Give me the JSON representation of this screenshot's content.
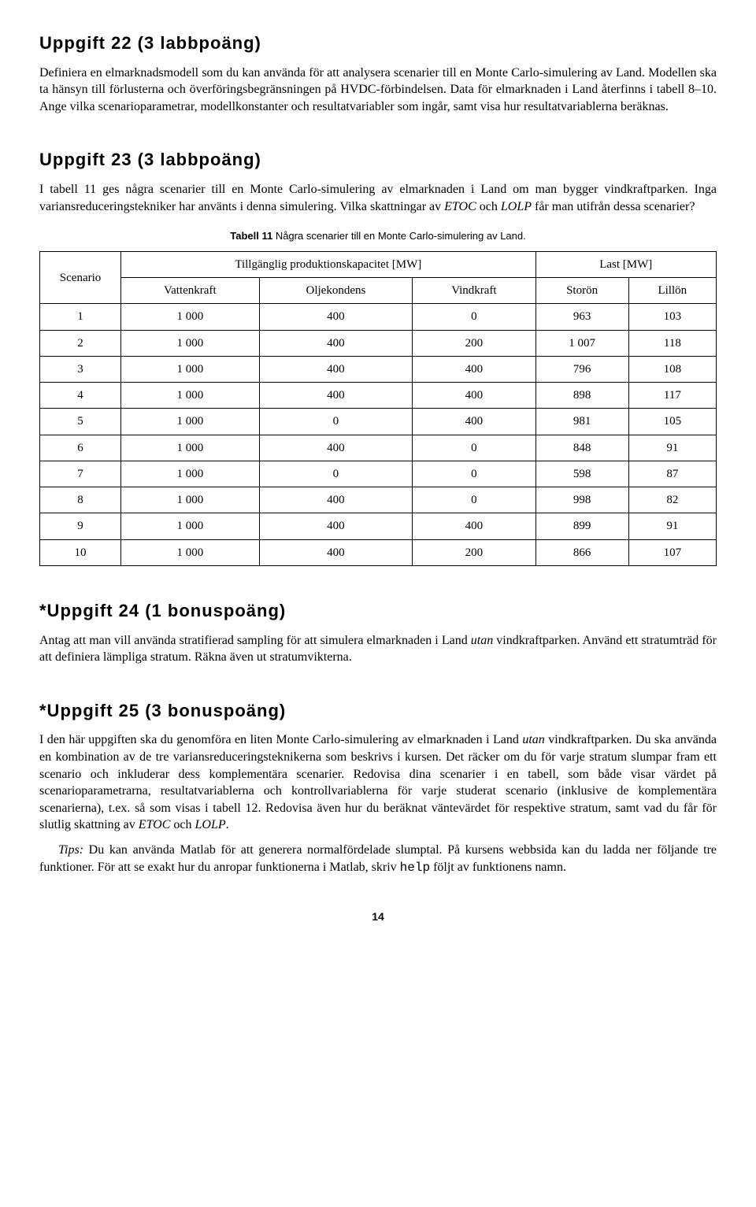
{
  "task22": {
    "heading": "Uppgift 22 (3 labbpoäng)",
    "body": "Definiera en elmarknadsmodell som du kan använda för att analysera scenarier till en Monte Carlo-simulering av Land. Modellen ska ta hänsyn till förlusterna och överföringsbegränsningen på HVDC-förbindelsen. Data för elmarknaden i Land återfinns i tabell 8–10. Ange vilka scenarioparametrar, modellkonstanter och resultatvariabler som ingår, samt visa hur resultatvariablerna beräknas."
  },
  "task23": {
    "heading": "Uppgift 23 (3 labbpoäng)",
    "body_before_italic1": "I tabell 11 ges några scenarier till en Monte Carlo-simulering av elmarknaden i Land om man bygger vindkraftparken. Inga variansreduceringstekniker har använts i denna simulering. Vilka skattningar av ",
    "italic1": "ETOC",
    "mid": " och ",
    "italic2": "LOLP",
    "after": " får man utifrån dessa scenarier?",
    "table_caption_bold": "Tabell 11",
    "table_caption_rest": " Några scenarier till en Monte Carlo-simulering av Land.",
    "col_scenario": "Scenario",
    "col_capacity": "Tillgänglig produktionskapacitet [MW]",
    "col_load": "Last [MW]",
    "sub_vatten": "Vattenkraft",
    "sub_olje": "Oljekondens",
    "sub_vind": "Vindkraft",
    "sub_storon": "Storön",
    "sub_lillon": "Lillön",
    "rows": [
      [
        "1",
        "1 000",
        "400",
        "0",
        "963",
        "103"
      ],
      [
        "2",
        "1 000",
        "400",
        "200",
        "1 007",
        "118"
      ],
      [
        "3",
        "1 000",
        "400",
        "400",
        "796",
        "108"
      ],
      [
        "4",
        "1 000",
        "400",
        "400",
        "898",
        "117"
      ],
      [
        "5",
        "1 000",
        "0",
        "400",
        "981",
        "105"
      ],
      [
        "6",
        "1 000",
        "400",
        "0",
        "848",
        "91"
      ],
      [
        "7",
        "1 000",
        "0",
        "0",
        "598",
        "87"
      ],
      [
        "8",
        "1 000",
        "400",
        "0",
        "998",
        "82"
      ],
      [
        "9",
        "1 000",
        "400",
        "400",
        "899",
        "91"
      ],
      [
        "10",
        "1 000",
        "400",
        "200",
        "866",
        "107"
      ]
    ]
  },
  "task24": {
    "heading": "*Uppgift 24 (1 bonuspoäng)",
    "body_before": "Antag att man vill använda stratifierad sampling för att simulera elmarknaden i Land ",
    "italic": "utan",
    "body_after": " vindkraftparken. Använd ett stratumträd för att definiera lämpliga stratum. Räkna även ut stratumvikterna."
  },
  "task25": {
    "heading": "*Uppgift 25 (3 bonuspoäng)",
    "p1_before": "I den här uppgiften ska du genomföra en liten Monte Carlo-simulering av elmarknaden i Land ",
    "p1_italic": "utan",
    "p1_mid": " vindkraftparken. Du ska använda en kombination av de tre variansreduceringsteknikerna som beskrivs i kursen. Det räcker om du för varje stratum slumpar fram ett scenario och inkluderar dess komplementära scenarier. Redovisa dina scenarier i en tabell, som både visar värdet på scenarioparametrarna, resultatvariablerna och kontrollvariablerna för varje studerat scenario (inklusive de komplementära scenarierna), t.ex. så som visas i tabell 12. Redovisa även hur du beräknat väntevärdet för respektive stratum, samt vad du får för slutlig skattning av ",
    "p1_etoc": "ETOC",
    "p1_och": " och ",
    "p1_lolp": "LOLP",
    "p1_end": ".",
    "p2_tips": "Tips:",
    "p2_body": " Du kan använda Matlab för att generera normalfördelade slumptal. På kursens webbsida kan du ladda ner följande tre funktioner. För att se exakt hur du anropar funktionerna i Matlab, skriv ",
    "p2_mono": "help",
    "p2_end": " följt av funktionens namn."
  },
  "page_number": "14"
}
